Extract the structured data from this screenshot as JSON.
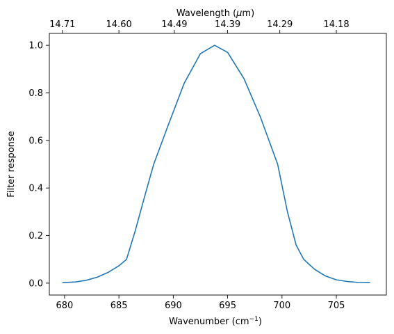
{
  "chart_data": {
    "type": "line",
    "xlabel": "Wavenumber (cm",
    "xlabel_sup": "−1",
    "xlabel_end": ")",
    "ylabel": "Filter response",
    "top_xlabel": "Wavelength (",
    "top_xlabel_mu": "μ",
    "top_xlabel_end": "m)",
    "xlim": [
      678.6,
      709.6
    ],
    "ylim": [
      -0.05,
      1.05
    ],
    "x_ticks": [
      680,
      685,
      690,
      695,
      700,
      705
    ],
    "x_tick_labels": [
      "680",
      "685",
      "690",
      "695",
      "700",
      "705"
    ],
    "y_ticks": [
      0.0,
      0.2,
      0.4,
      0.6,
      0.8,
      1.0
    ],
    "y_tick_labels": [
      "0.0",
      "0.2",
      "0.4",
      "0.6",
      "0.8",
      "1.0"
    ],
    "top_ticks_wavenumber": [
      679.8,
      685.0,
      690.1,
      695.0,
      699.8,
      705.0
    ],
    "top_tick_labels": [
      "14.71",
      "14.60",
      "14.49",
      "14.39",
      "14.29",
      "14.18"
    ],
    "series": [
      {
        "color": "#1f77b4",
        "x": [
          679.8,
          681.0,
          682.0,
          683.0,
          684.0,
          685.0,
          685.7,
          686.5,
          687.4,
          688.2,
          689.5,
          691.0,
          692.5,
          693.8,
          695.0,
          696.5,
          698.0,
          699.6,
          700.5,
          701.3,
          702.0,
          703.0,
          704.0,
          705.0,
          706.0,
          707.0,
          708.1
        ],
        "y": [
          0.002,
          0.005,
          0.012,
          0.025,
          0.045,
          0.073,
          0.1,
          0.22,
          0.37,
          0.5,
          0.66,
          0.84,
          0.965,
          1.0,
          0.97,
          0.86,
          0.7,
          0.5,
          0.3,
          0.16,
          0.1,
          0.058,
          0.03,
          0.014,
          0.007,
          0.003,
          0.002
        ]
      }
    ]
  }
}
